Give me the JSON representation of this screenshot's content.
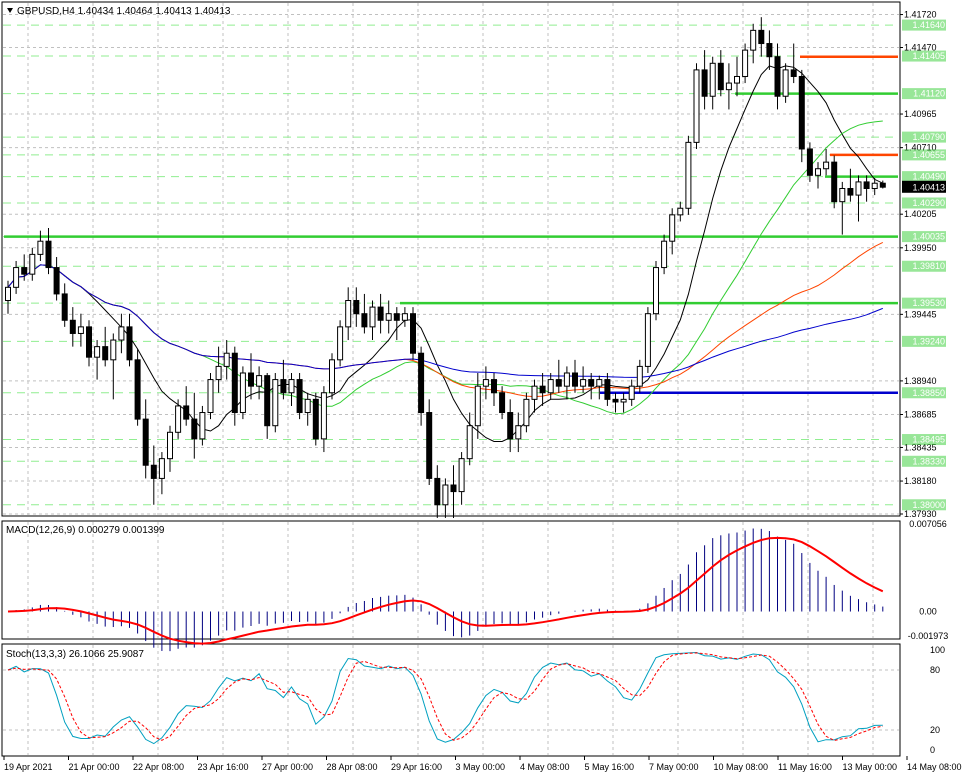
{
  "header": {
    "arrow_icon": "triangle-down-icon",
    "symbol_info": "GBPUSD,H4  1.40434 1.40464 1.40413 1.40413"
  },
  "colors": {
    "grid": "#c0c0c0",
    "bull": "#ffffff",
    "bear": "#000000",
    "sma_fast": "#000000",
    "sma_mid": "#32cd32",
    "sma_slow": "#ff4500",
    "sma_long": "#0000cd",
    "level_green": "#32cd32",
    "level_red": "#ff4500",
    "level_blue": "#0000cd",
    "macd_hist": "#000080",
    "macd_signal": "#ff0000",
    "stoch_main": "#00a0c0",
    "stoch_signal": "#ff0000"
  },
  "price_axis": {
    "ticks": [
      "1.41720",
      "1.41470",
      "1.40965",
      "1.40710",
      "1.40205",
      "1.39950",
      "1.39445",
      "1.38940",
      "1.38685",
      "1.38435",
      "1.38180",
      "1.37930"
    ],
    "badges": [
      "1.41640",
      "1.41405",
      "1.41120",
      "1.40790",
      "1.40655",
      "1.40490",
      "1.40290",
      "1.40035",
      "1.39810",
      "1.39530",
      "1.39240",
      "1.38850",
      "1.38495",
      "1.38330",
      "1.38000"
    ],
    "current": "1.40413"
  },
  "macd": {
    "label": "MACD(12,26,9) 0.000279 0.001399",
    "ticks": [
      "0.007056",
      "0.00",
      "-0.001973"
    ]
  },
  "stoch": {
    "label": "Stoch(13,3,3) 26.1066 25.9087",
    "ticks": [
      "100",
      "80",
      "20",
      "0"
    ]
  },
  "time_axis": [
    "19 Apr 2021",
    "21 Apr 00:00",
    "22 Apr 08:00",
    "23 Apr 16:00",
    "27 Apr 00:00",
    "28 Apr 08:00",
    "29 Apr 16:00",
    "3 May 00:00",
    "4 May 08:00",
    "5 May 16:00",
    "7 May 00:00",
    "10 May 08:00",
    "11 May 16:00",
    "13 May 00:00",
    "14 May 08:00"
  ],
  "chart_data": {
    "type": "candlestick",
    "symbol": "GBPUSD",
    "timeframe": "H4",
    "candle_width_h": 4,
    "candles_ohlc": [
      [
        1.3955,
        1.397,
        1.3945,
        1.3965
      ],
      [
        1.3965,
        1.3985,
        1.396,
        1.398
      ],
      [
        1.398,
        1.399,
        1.397,
        1.3975
      ],
      [
        1.3975,
        1.3995,
        1.397,
        1.399
      ],
      [
        1.399,
        1.4008,
        1.3985,
        1.4
      ],
      [
        1.4,
        1.401,
        1.3975,
        1.398
      ],
      [
        1.398,
        1.3988,
        1.3955,
        1.396
      ],
      [
        1.396,
        1.3968,
        1.3935,
        1.394
      ],
      [
        1.394,
        1.395,
        1.392,
        1.393
      ],
      [
        1.393,
        1.3945,
        1.392,
        1.3935
      ],
      [
        1.3935,
        1.394,
        1.3905,
        1.3912
      ],
      [
        1.3912,
        1.3925,
        1.3895,
        1.392
      ],
      [
        1.392,
        1.3935,
        1.3905,
        1.391
      ],
      [
        1.391,
        1.393,
        1.388,
        1.3925
      ],
      [
        1.3925,
        1.3945,
        1.3915,
        1.3935
      ],
      [
        1.3935,
        1.3945,
        1.3905,
        1.391
      ],
      [
        1.391,
        1.3918,
        1.386,
        1.3865
      ],
      [
        1.3865,
        1.388,
        1.382,
        1.383
      ],
      [
        1.383,
        1.3845,
        1.38,
        1.382
      ],
      [
        1.382,
        1.384,
        1.3808,
        1.3835
      ],
      [
        1.3835,
        1.386,
        1.3825,
        1.3855
      ],
      [
        1.3855,
        1.388,
        1.385,
        1.3875
      ],
      [
        1.3875,
        1.389,
        1.386,
        1.3865
      ],
      [
        1.3865,
        1.3885,
        1.3835,
        1.385
      ],
      [
        1.385,
        1.3875,
        1.3845,
        1.387
      ],
      [
        1.387,
        1.39,
        1.3865,
        1.3895
      ],
      [
        1.3895,
        1.392,
        1.3885,
        1.3905
      ],
      [
        1.3905,
        1.3925,
        1.3895,
        1.3915
      ],
      [
        1.3915,
        1.392,
        1.386,
        1.387
      ],
      [
        1.387,
        1.3905,
        1.3865,
        1.39
      ],
      [
        1.39,
        1.3915,
        1.388,
        1.389
      ],
      [
        1.389,
        1.3905,
        1.388,
        1.3898
      ],
      [
        1.3898,
        1.39,
        1.385,
        1.386
      ],
      [
        1.386,
        1.39,
        1.3855,
        1.3895
      ],
      [
        1.3895,
        1.391,
        1.388,
        1.3885
      ],
      [
        1.3885,
        1.39,
        1.3875,
        1.3895
      ],
      [
        1.3895,
        1.39,
        1.3865,
        1.387
      ],
      [
        1.387,
        1.3885,
        1.386,
        1.388
      ],
      [
        1.388,
        1.3885,
        1.3845,
        1.385
      ],
      [
        1.385,
        1.389,
        1.384,
        1.3885
      ],
      [
        1.3885,
        1.3915,
        1.388,
        1.391
      ],
      [
        1.391,
        1.394,
        1.3905,
        1.3935
      ],
      [
        1.3935,
        1.3965,
        1.3925,
        1.3955
      ],
      [
        1.3955,
        1.3965,
        1.3935,
        1.3945
      ],
      [
        1.3945,
        1.396,
        1.393,
        1.3935
      ],
      [
        1.3935,
        1.3955,
        1.3925,
        1.395
      ],
      [
        1.395,
        1.396,
        1.393,
        1.394
      ],
      [
        1.394,
        1.3955,
        1.393,
        1.3945
      ],
      [
        1.3945,
        1.395,
        1.3925,
        1.394
      ],
      [
        1.394,
        1.395,
        1.3935,
        1.3945
      ],
      [
        1.3945,
        1.395,
        1.391,
        1.3915
      ],
      [
        1.3915,
        1.392,
        1.386,
        1.387
      ],
      [
        1.387,
        1.388,
        1.3815,
        1.382
      ],
      [
        1.382,
        1.383,
        1.379,
        1.38
      ],
      [
        1.38,
        1.382,
        1.379,
        1.3815
      ],
      [
        1.3815,
        1.383,
        1.379,
        1.381
      ],
      [
        1.381,
        1.384,
        1.38,
        1.3835
      ],
      [
        1.3835,
        1.387,
        1.383,
        1.386
      ],
      [
        1.386,
        1.39,
        1.385,
        1.389
      ],
      [
        1.389,
        1.3905,
        1.388,
        1.3895
      ],
      [
        1.3895,
        1.39,
        1.3875,
        1.3885
      ],
      [
        1.3885,
        1.389,
        1.3865,
        1.387
      ],
      [
        1.387,
        1.388,
        1.384,
        1.385
      ],
      [
        1.385,
        1.387,
        1.384,
        1.386
      ],
      [
        1.386,
        1.3885,
        1.3855,
        1.388
      ],
      [
        1.388,
        1.3895,
        1.387,
        1.389
      ],
      [
        1.389,
        1.39,
        1.3875,
        1.3885
      ],
      [
        1.3885,
        1.39,
        1.388,
        1.3895
      ],
      [
        1.3895,
        1.391,
        1.3885,
        1.389
      ],
      [
        1.389,
        1.3905,
        1.388,
        1.39
      ],
      [
        1.39,
        1.391,
        1.3885,
        1.389
      ],
      [
        1.389,
        1.3905,
        1.3885,
        1.3895
      ],
      [
        1.3895,
        1.39,
        1.388,
        1.389
      ],
      [
        1.389,
        1.3898,
        1.388,
        1.3895
      ],
      [
        1.3895,
        1.39,
        1.3875,
        1.388
      ],
      [
        1.388,
        1.3885,
        1.387,
        1.3878
      ],
      [
        1.3878,
        1.3885,
        1.387,
        1.388
      ],
      [
        1.388,
        1.3895,
        1.3875,
        1.389
      ],
      [
        1.389,
        1.391,
        1.3885,
        1.3905
      ],
      [
        1.3905,
        1.395,
        1.39,
        1.3945
      ],
      [
        1.3945,
        1.3985,
        1.394,
        1.398
      ],
      [
        1.398,
        1.4005,
        1.3975,
        1.4
      ],
      [
        1.4,
        1.4025,
        1.399,
        1.402
      ],
      [
        1.402,
        1.403,
        1.4015,
        1.4025
      ],
      [
        1.4025,
        1.408,
        1.402,
        1.4075
      ],
      [
        1.4075,
        1.4135,
        1.407,
        1.413
      ],
      [
        1.413,
        1.4145,
        1.41,
        1.411
      ],
      [
        1.411,
        1.414,
        1.41,
        1.4135
      ],
      [
        1.4135,
        1.4145,
        1.411,
        1.4115
      ],
      [
        1.4115,
        1.4135,
        1.41,
        1.412
      ],
      [
        1.412,
        1.414,
        1.411,
        1.4125
      ],
      [
        1.4125,
        1.415,
        1.412,
        1.4145
      ],
      [
        1.4145,
        1.4165,
        1.4135,
        1.416
      ],
      [
        1.416,
        1.417,
        1.414,
        1.415
      ],
      [
        1.415,
        1.416,
        1.413,
        1.414
      ],
      [
        1.414,
        1.415,
        1.41,
        1.411
      ],
      [
        1.411,
        1.4135,
        1.4105,
        1.413
      ],
      [
        1.413,
        1.415,
        1.412,
        1.4125
      ],
      [
        1.4125,
        1.413,
        1.406,
        1.407
      ],
      [
        1.407,
        1.4075,
        1.4045,
        1.405
      ],
      [
        1.405,
        1.406,
        1.404,
        1.4055
      ],
      [
        1.4055,
        1.407,
        1.405,
        1.406
      ],
      [
        1.406,
        1.4065,
        1.4025,
        1.403
      ],
      [
        1.403,
        1.4045,
        1.4005,
        1.404
      ],
      [
        1.404,
        1.4055,
        1.403,
        1.4035
      ],
      [
        1.4035,
        1.405,
        1.4015,
        1.4045
      ],
      [
        1.4045,
        1.405,
        1.403,
        1.404
      ],
      [
        1.404,
        1.4048,
        1.4035,
        1.4044
      ],
      [
        1.4044,
        1.4046,
        1.404,
        1.4041
      ]
    ],
    "levels": [
      {
        "price": 1.414,
        "color": "red"
      },
      {
        "price": 1.4112,
        "color": "green"
      },
      {
        "price": 1.40655,
        "color": "red"
      },
      {
        "price": 1.4049,
        "color": "green"
      },
      {
        "price": 1.40035,
        "color": "green"
      },
      {
        "price": 1.3953,
        "color": "green"
      },
      {
        "price": 1.3885,
        "color": "blue"
      }
    ],
    "ylim": [
      1.3793,
      1.418
    ],
    "macd_range": [
      -0.001973,
      0.007056
    ],
    "stoch_range": [
      0,
      100
    ]
  }
}
